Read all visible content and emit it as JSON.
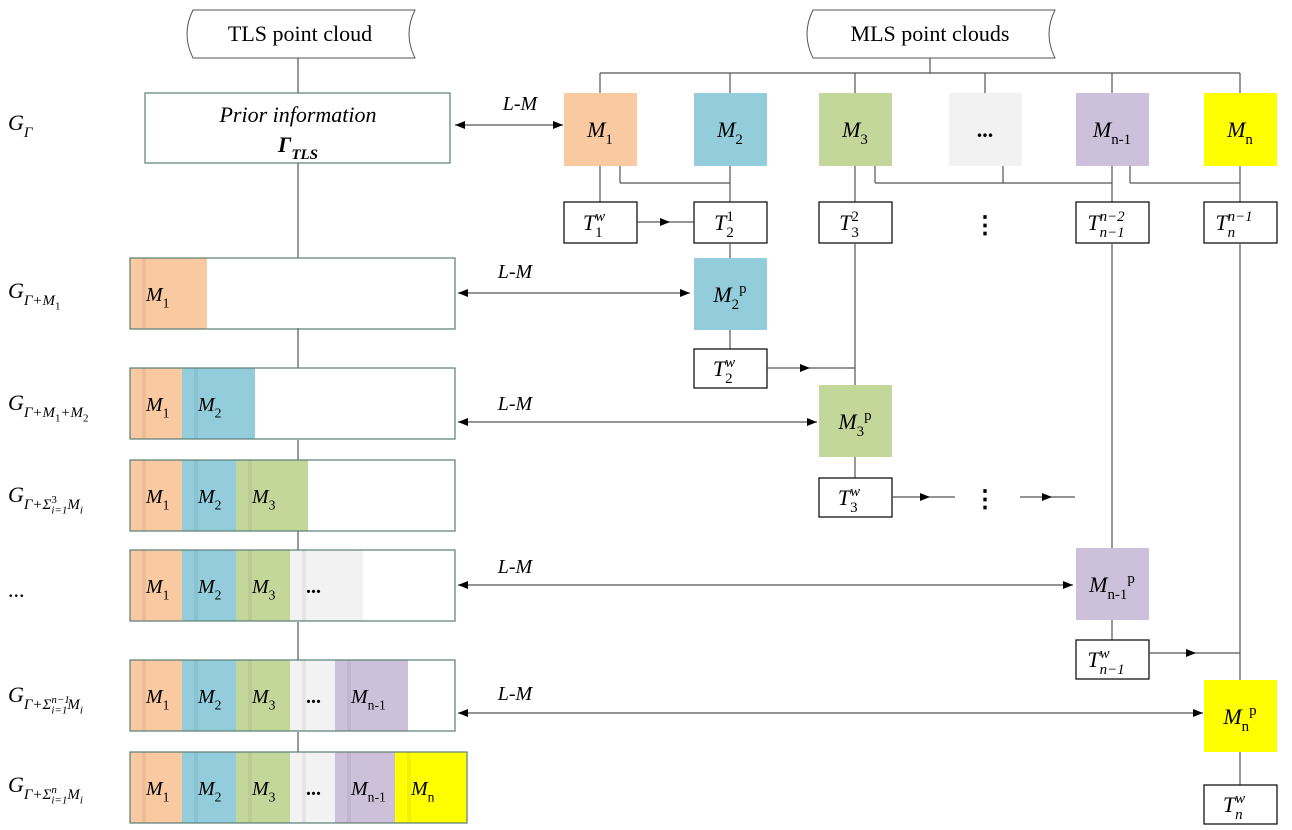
{
  "sources": {
    "tls": "TLS point cloud",
    "mls": "MLS point clouds"
  },
  "prior_information": {
    "title": "Prior information",
    "symbol": [
      [
        "Γ",
        "n"
      ],
      [
        "TLS",
        "b"
      ]
    ]
  },
  "row_labels": [
    [
      [
        "G",
        "n"
      ],
      [
        "Γ",
        "b"
      ]
    ],
    [
      [
        "G",
        "n"
      ],
      [
        "Γ+M",
        "b"
      ],
      [
        "1",
        "bb"
      ]
    ],
    [
      [
        "G",
        "n"
      ],
      [
        "Γ+M",
        "b"
      ],
      [
        "1",
        "bb"
      ],
      [
        "+M",
        "b"
      ],
      [
        "2",
        "bb"
      ]
    ],
    [
      [
        "G",
        "n"
      ],
      [
        "Γ+Σ",
        "b"
      ],
      [
        "3",
        "bp"
      ],
      [
        "i=1",
        "bb"
      ],
      [
        "M",
        "b"
      ],
      [
        "i",
        "bb"
      ]
    ],
    [
      [
        "...",
        "n"
      ]
    ],
    [
      [
        "G",
        "n"
      ],
      [
        "Γ+Σ",
        "b"
      ],
      [
        "n−1",
        "bp"
      ],
      [
        "i=1",
        "bb"
      ],
      [
        "M",
        "b"
      ],
      [
        "i",
        "bb"
      ]
    ],
    [
      [
        "G",
        "n"
      ],
      [
        "Γ+Σ",
        "b"
      ],
      [
        "n",
        "bp"
      ],
      [
        "i=1",
        "bb"
      ],
      [
        "M",
        "b"
      ],
      [
        "i",
        "bb"
      ]
    ]
  ],
  "link_labels": [
    "L-M",
    "L-M",
    "L-M",
    "L-M",
    "L-M"
  ],
  "mls_boxes": [
    {
      "label": [
        [
          "M",
          "n"
        ],
        [
          "1",
          "b"
        ]
      ],
      "color": "#F9C9A1"
    },
    {
      "label": [
        [
          "M",
          "n"
        ],
        [
          "2",
          "b"
        ]
      ],
      "color": "#93CDDC"
    },
    {
      "label": [
        [
          "M",
          "n"
        ],
        [
          "3",
          "b"
        ]
      ],
      "color": "#C4D79B"
    },
    {
      "label": [
        [
          "...",
          "n"
        ]
      ],
      "color": "#F2F2F2"
    },
    {
      "label": [
        [
          "M",
          "n"
        ],
        [
          "n-1",
          "b"
        ]
      ],
      "color": "#CCC0DA"
    },
    {
      "label": [
        [
          "M",
          "n"
        ],
        [
          "n",
          "b"
        ]
      ],
      "color": "#FFFF00"
    }
  ],
  "pairwise_transforms": [
    [
      [
        "T",
        "n"
      ],
      [
        "w",
        "p"
      ],
      [
        "1",
        "b"
      ]
    ],
    [
      [
        "T",
        "n"
      ],
      [
        "1",
        "p"
      ],
      [
        "2",
        "b"
      ]
    ],
    [
      [
        "T",
        "n"
      ],
      [
        "2",
        "p"
      ],
      [
        "3",
        "b"
      ]
    ],
    [
      [
        "⋮",
        "n"
      ]
    ],
    [
      [
        "T",
        "n"
      ],
      [
        "n−2",
        "p"
      ],
      [
        "n−1",
        "b"
      ]
    ],
    [
      [
        "T",
        "n"
      ],
      [
        "n−1",
        "p"
      ],
      [
        "n",
        "b"
      ]
    ]
  ],
  "refined_boxes": [
    {
      "label": [
        [
          "M",
          "n"
        ],
        [
          "2",
          "b"
        ],
        [
          "p",
          "p"
        ]
      ],
      "color": "#93CDDC"
    },
    {
      "label": [
        [
          "M",
          "n"
        ],
        [
          "3",
          "b"
        ],
        [
          "p",
          "p"
        ]
      ],
      "color": "#C4D79B"
    },
    {
      "label": [
        [
          "M",
          "n"
        ],
        [
          "n-1",
          "b"
        ],
        [
          "p",
          "p"
        ]
      ],
      "color": "#CCC0DA"
    },
    {
      "label": [
        [
          "M",
          "n"
        ],
        [
          "n",
          "b"
        ],
        [
          "p",
          "p"
        ]
      ],
      "color": "#FFFF00"
    }
  ],
  "world_transforms": [
    [
      [
        "T",
        "n"
      ],
      [
        "w",
        "p"
      ],
      [
        "2",
        "b"
      ]
    ],
    [
      [
        "T",
        "n"
      ],
      [
        "w",
        "p"
      ],
      [
        "3",
        "b"
      ]
    ],
    [
      [
        "T",
        "n"
      ],
      [
        "w",
        "p"
      ],
      [
        "n−1",
        "b"
      ]
    ],
    [
      [
        "T",
        "n"
      ],
      [
        "w",
        "p"
      ],
      [
        "n",
        "b"
      ]
    ]
  ],
  "chain_ellipsis": "⋮",
  "bar_rows": [
    [
      {
        "label": [
          [
            "M",
            "n"
          ],
          [
            "1",
            "b"
          ]
        ],
        "color": "#F9C9A1"
      }
    ],
    [
      {
        "label": [
          [
            "M",
            "n"
          ],
          [
            "1",
            "b"
          ]
        ],
        "color": "#F9C9A1"
      },
      {
        "label": [
          [
            "M",
            "n"
          ],
          [
            "2",
            "b"
          ]
        ],
        "color": "#93CDDC"
      }
    ],
    [
      {
        "label": [
          [
            "M",
            "n"
          ],
          [
            "1",
            "b"
          ]
        ],
        "color": "#F9C9A1"
      },
      {
        "label": [
          [
            "M",
            "n"
          ],
          [
            "2",
            "b"
          ]
        ],
        "color": "#93CDDC"
      },
      {
        "label": [
          [
            "M",
            "n"
          ],
          [
            "3",
            "b"
          ]
        ],
        "color": "#C4D79B"
      }
    ],
    [
      {
        "label": [
          [
            "M",
            "n"
          ],
          [
            "1",
            "b"
          ]
        ],
        "color": "#F9C9A1"
      },
      {
        "label": [
          [
            "M",
            "n"
          ],
          [
            "2",
            "b"
          ]
        ],
        "color": "#93CDDC"
      },
      {
        "label": [
          [
            "M",
            "n"
          ],
          [
            "3",
            "b"
          ]
        ],
        "color": "#C4D79B"
      },
      {
        "label": [
          [
            "...",
            "n"
          ]
        ],
        "color": "#F2F2F2"
      }
    ],
    [
      {
        "label": [
          [
            "M",
            "n"
          ],
          [
            "1",
            "b"
          ]
        ],
        "color": "#F9C9A1"
      },
      {
        "label": [
          [
            "M",
            "n"
          ],
          [
            "2",
            "b"
          ]
        ],
        "color": "#93CDDC"
      },
      {
        "label": [
          [
            "M",
            "n"
          ],
          [
            "3",
            "b"
          ]
        ],
        "color": "#C4D79B"
      },
      {
        "label": [
          [
            "...",
            "n"
          ]
        ],
        "color": "#F2F2F2"
      },
      {
        "label": [
          [
            "M",
            "n"
          ],
          [
            "n-1",
            "b"
          ]
        ],
        "color": "#CCC0DA"
      }
    ],
    [
      {
        "label": [
          [
            "M",
            "n"
          ],
          [
            "1",
            "b"
          ]
        ],
        "color": "#F9C9A1"
      },
      {
        "label": [
          [
            "M",
            "n"
          ],
          [
            "2",
            "b"
          ]
        ],
        "color": "#93CDDC"
      },
      {
        "label": [
          [
            "M",
            "n"
          ],
          [
            "3",
            "b"
          ]
        ],
        "color": "#C4D79B"
      },
      {
        "label": [
          [
            "...",
            "n"
          ]
        ],
        "color": "#F2F2F2"
      },
      {
        "label": [
          [
            "M",
            "n"
          ],
          [
            "n-1",
            "b"
          ]
        ],
        "color": "#CCC0DA"
      },
      {
        "label": [
          [
            "M",
            "n"
          ],
          [
            "n",
            "b"
          ]
        ],
        "color": "#FFFF00"
      }
    ]
  ]
}
